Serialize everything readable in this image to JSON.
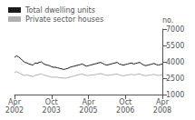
{
  "chart_data": {
    "type": "line",
    "y_label": "no.",
    "categories": [
      "Apr\n2002",
      null,
      null,
      null,
      null,
      null,
      null,
      null,
      null,
      null,
      null,
      null,
      null,
      null,
      null,
      null,
      null,
      null,
      "Oct\n2003",
      null,
      null,
      null,
      null,
      null,
      null,
      null,
      null,
      null,
      null,
      null,
      null,
      null,
      null,
      null,
      null,
      null,
      "Apr\n2005",
      null,
      null,
      null,
      null,
      null,
      null,
      null,
      null,
      null,
      null,
      null,
      null,
      null,
      null,
      null,
      null,
      null,
      "Oct\n2006",
      null,
      null,
      null,
      null,
      null,
      null,
      null,
      null,
      null,
      null,
      null,
      null,
      null,
      null,
      null,
      null,
      null,
      "Apr\n2008"
    ],
    "series": [
      {
        "name": "Total dwelling units",
        "color": "#1a1a1a",
        "values": [
          4400,
          4550,
          4450,
          4300,
          4100,
          3950,
          3900,
          3800,
          3750,
          3700,
          3900,
          3850,
          3950,
          4000,
          3850,
          3750,
          3700,
          3650,
          3550,
          3500,
          3500,
          3450,
          3400,
          3350,
          3300,
          3350,
          3400,
          3500,
          3550,
          3600,
          3650,
          3700,
          3750,
          3800,
          3700,
          3600,
          3650,
          3700,
          3750,
          3800,
          3850,
          3900,
          3950,
          3850,
          3750,
          3700,
          3750,
          3800,
          3850,
          3900,
          3950,
          3800,
          3750,
          3700,
          3750,
          3800,
          3850,
          3900,
          3800,
          3850,
          3900,
          3950,
          3800,
          3700,
          3650,
          3700,
          3750,
          3800,
          3850,
          3750,
          3700,
          3750,
          3800
        ]
      },
      {
        "name": "Private sector houses",
        "color": "#b0b0b0",
        "values": [
          3000,
          3100,
          3000,
          2900,
          2800,
          2750,
          2800,
          2750,
          2700,
          2650,
          2750,
          2800,
          2850,
          2900,
          2800,
          2750,
          2700,
          2650,
          2600,
          2580,
          2600,
          2580,
          2550,
          2530,
          2500,
          2520,
          2550,
          2600,
          2650,
          2700,
          2750,
          2800,
          2850,
          2900,
          2800,
          2750,
          2750,
          2780,
          2800,
          2820,
          2850,
          2900,
          2920,
          2880,
          2800,
          2750,
          2780,
          2800,
          2820,
          2860,
          2880,
          2800,
          2750,
          2720,
          2750,
          2780,
          2820,
          2850,
          2800,
          2830,
          2860,
          2900,
          2800,
          2750,
          2730,
          2760,
          2790,
          2820,
          2850,
          2780,
          2750,
          2780,
          2820
        ]
      }
    ],
    "ylim": [
      1000,
      7000
    ],
    "yticks": [
      1000,
      2500,
      4000,
      5500,
      7000
    ],
    "grid": false,
    "legend": "upper left"
  }
}
